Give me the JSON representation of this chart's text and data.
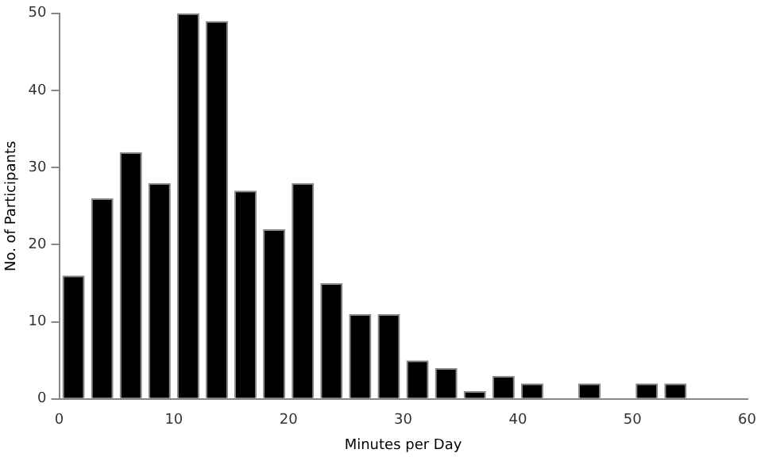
{
  "chart_data": {
    "type": "histogram",
    "xlabel": "Minutes per Day",
    "ylabel": "No. of Participants",
    "bins": [
      0,
      2.5,
      5,
      7.5,
      10,
      12.5,
      15,
      17.5,
      20,
      22.5,
      25,
      27.5,
      30,
      32.5,
      35,
      37.5,
      40,
      42.5,
      45,
      47.5,
      50,
      52.5,
      55
    ],
    "values": [
      16,
      26,
      32,
      28,
      50,
      49,
      27,
      22,
      28,
      15,
      11,
      11,
      5,
      4,
      1,
      3,
      2,
      0,
      2,
      0,
      2,
      2
    ],
    "color": "#000000",
    "xlim": [
      0,
      60
    ],
    "xticks": [
      0,
      10,
      20,
      30,
      40,
      50,
      60
    ],
    "ylim": [
      0,
      50
    ],
    "yticks": [
      0,
      10,
      20,
      30,
      40,
      50
    ],
    "grid": false,
    "legend": false
  }
}
